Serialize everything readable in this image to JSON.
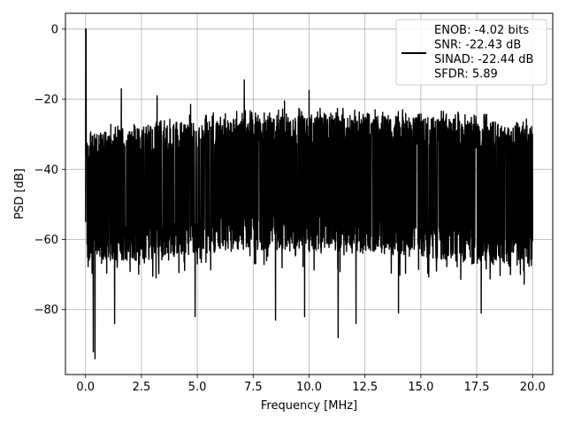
{
  "chart_data": {
    "type": "line",
    "xlabel": "Frequency [MHz]",
    "ylabel": "PSD [dB]",
    "xlim": [
      -0.9,
      20.9
    ],
    "ylim": [
      -98.5,
      4.5
    ],
    "xticks": [
      0.0,
      2.5,
      5.0,
      7.5,
      10.0,
      12.5,
      15.0,
      17.5,
      20.0
    ],
    "xtick_labels": [
      "0.0",
      "2.5",
      "5.0",
      "7.5",
      "10.0",
      "12.5",
      "15.0",
      "17.5",
      "20.0"
    ],
    "yticks": [
      0,
      -20,
      -40,
      -60,
      -80
    ],
    "ytick_labels": [
      "0",
      "−20",
      "−40",
      "−60",
      "−80"
    ],
    "grid": true,
    "legend_position": "top-right",
    "series": [
      {
        "name": "ENOB: -4.02 bits\nSNR: -22.43 dB\nSINAD: -22.44 dB\nSFDR: 5.89",
        "color": "#000000",
        "noise_floor_upper_db": [
          [
            0.0,
            -30
          ],
          [
            2.5,
            -28
          ],
          [
            5.0,
            -26
          ],
          [
            7.5,
            -25
          ],
          [
            10.0,
            -24.5
          ],
          [
            12.5,
            -24.5
          ],
          [
            15.0,
            -25
          ],
          [
            17.5,
            -26
          ],
          [
            20.0,
            -27.5
          ]
        ],
        "noise_floor_lower_db": [
          [
            0.0,
            -66
          ],
          [
            2.5,
            -66
          ],
          [
            5.0,
            -64
          ],
          [
            7.5,
            -63
          ],
          [
            10.0,
            -63
          ],
          [
            12.5,
            -64
          ],
          [
            15.0,
            -65
          ],
          [
            17.5,
            -67
          ],
          [
            20.0,
            -68
          ]
        ],
        "peaks": [
          {
            "x": 0.02,
            "y": 0
          },
          {
            "x": 1.6,
            "y": -17
          },
          {
            "x": 3.2,
            "y": -19
          },
          {
            "x": 7.1,
            "y": -14.5
          },
          {
            "x": 10.0,
            "y": -17.5
          },
          {
            "x": 4.7,
            "y": -21.5
          },
          {
            "x": 8.9,
            "y": -20.5
          }
        ],
        "dips": [
          {
            "x": 0.42,
            "y": -94
          },
          {
            "x": 0.35,
            "y": -92
          },
          {
            "x": 1.3,
            "y": -84
          },
          {
            "x": 4.9,
            "y": -82
          },
          {
            "x": 8.5,
            "y": -83
          },
          {
            "x": 9.8,
            "y": -82
          },
          {
            "x": 11.3,
            "y": -88
          },
          {
            "x": 12.1,
            "y": -84
          },
          {
            "x": 14.0,
            "y": -81
          },
          {
            "x": 17.7,
            "y": -81
          }
        ]
      }
    ]
  }
}
